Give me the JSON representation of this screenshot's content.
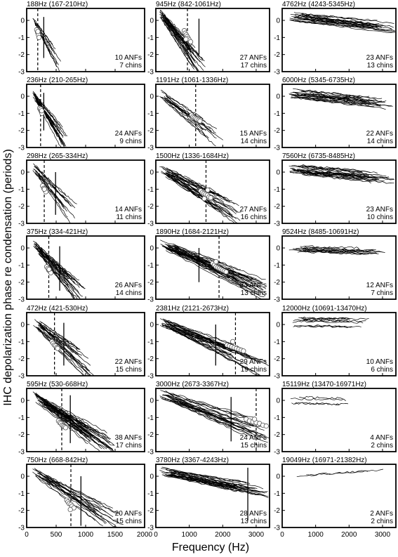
{
  "figure": {
    "ylabel": "IHC depolarization phase re condensation (periods)",
    "xlabel": "Frequency (Hz)"
  },
  "chart_data": {
    "type": "line",
    "xlabel": "Frequency (Hz)",
    "ylabel": "IHC depolarization phase re condensation (periods)",
    "columns": [
      {
        "xlim": [
          0,
          2000
        ],
        "xticks": [
          0,
          500,
          1000,
          1500,
          2000
        ]
      },
      {
        "xlim": [
          0,
          3400
        ],
        "xticks": [
          0,
          1000,
          2000,
          3000
        ]
      },
      {
        "xlim": [
          0,
          3400
        ],
        "xticks": [
          0,
          1000,
          2000,
          3000
        ]
      }
    ],
    "ylim": [
      -3,
      0.7
    ],
    "yticks": [
      0,
      -1,
      -2,
      -3
    ],
    "panels": [
      {
        "col": 0,
        "row": 0,
        "title": "188Hz (167-210Hz)",
        "anfs": "10 ANFs",
        "chins": "7 chins",
        "cf": 188,
        "dashed": 188,
        "solid": 290,
        "solid_range": [
          -2.2,
          0.2
        ],
        "fiber_count": 10,
        "x_range": [
          100,
          600
        ],
        "phase": [
          0.25,
          -2.6
        ],
        "circles": [
          [
            170,
            -0.55
          ],
          [
            185,
            -0.7
          ],
          [
            200,
            -0.85
          ],
          [
            210,
            -1.0
          ],
          [
            190,
            -0.65
          ]
        ]
      },
      {
        "col": 0,
        "row": 1,
        "title": "236Hz (210-265Hz)",
        "anfs": "24 ANFs",
        "chins": "9 chins",
        "cf": 236,
        "dashed": 236,
        "solid": 290,
        "solid_range": [
          -2.0,
          0.2
        ],
        "fiber_count": 24,
        "x_range": [
          100,
          700
        ],
        "phase": [
          0.2,
          -2.9
        ],
        "circles": [
          [
            220,
            -0.7
          ],
          [
            235,
            -0.8
          ],
          [
            250,
            -0.9
          ],
          [
            260,
            -1.0
          ],
          [
            240,
            -0.75
          ],
          [
            255,
            -0.85
          ]
        ]
      },
      {
        "col": 0,
        "row": 2,
        "title": "298Hz (265-334Hz)",
        "anfs": "14 ANFs",
        "chins": "11 chins",
        "cf": 298,
        "dashed": 298,
        "solid": 490,
        "solid_range": [
          -2.5,
          0.0
        ],
        "fiber_count": 14,
        "x_range": [
          100,
          900
        ],
        "phase": [
          0.3,
          -3.0
        ],
        "circles": [
          [
            270,
            -0.8
          ],
          [
            290,
            -0.95
          ],
          [
            310,
            -1.05
          ],
          [
            325,
            -1.15
          ],
          [
            300,
            -1.0
          ]
        ]
      },
      {
        "col": 0,
        "row": 3,
        "title": "375Hz (334-421Hz)",
        "anfs": "26 ANFs",
        "chins": "14 chins",
        "cf": 375,
        "dashed": 375,
        "solid": 560,
        "solid_range": [
          -2.5,
          0.1
        ],
        "fiber_count": 26,
        "x_range": [
          100,
          1000
        ],
        "phase": [
          0.3,
          -3.0
        ],
        "circles": [
          [
            340,
            -1.1
          ],
          [
            360,
            -1.2
          ],
          [
            375,
            -1.3
          ],
          [
            390,
            -1.35
          ],
          [
            410,
            -1.45
          ],
          [
            380,
            -1.25
          ]
        ]
      },
      {
        "col": 0,
        "row": 4,
        "title": "472Hz (421-530Hz)",
        "anfs": "22 ANFs",
        "chins": "15 chins",
        "cf": 472,
        "dashed": 472,
        "solid": 630,
        "solid_range": [
          -2.4,
          0.1
        ],
        "fiber_count": 22,
        "x_range": [
          100,
          1200
        ],
        "phase": [
          0.25,
          -3.0
        ],
        "circles": [
          [
            430,
            -1.0
          ],
          [
            450,
            -1.1
          ],
          [
            470,
            -1.2
          ],
          [
            490,
            -1.25
          ],
          [
            510,
            -1.35
          ],
          [
            525,
            -1.4
          ]
        ]
      },
      {
        "col": 0,
        "row": 5,
        "title": "595Hz (530-668Hz)",
        "anfs": "38 ANFs",
        "chins": "17 chins",
        "cf": 595,
        "dashed": 595,
        "solid": 740,
        "solid_range": [
          -2.5,
          0.3
        ],
        "fiber_count": 38,
        "x_range": [
          100,
          1500
        ],
        "phase": [
          0.3,
          -3.0
        ],
        "circles": [
          [
            540,
            -1.2
          ],
          [
            560,
            -1.3
          ],
          [
            580,
            -1.35
          ],
          [
            600,
            -1.45
          ],
          [
            620,
            -1.5
          ],
          [
            640,
            -1.55
          ],
          [
            660,
            -1.6
          ]
        ]
      },
      {
        "col": 0,
        "row": 6,
        "title": "750Hz (668-842Hz)",
        "anfs": "20 ANFs",
        "chins": "15 chins",
        "cf": 750,
        "dashed": 750,
        "solid": 920,
        "solid_range": [
          -2.9,
          0.0
        ],
        "fiber_count": 20,
        "x_range": [
          100,
          1700
        ],
        "phase": [
          0.3,
          -3.0
        ],
        "circles": [
          [
            680,
            -1.4
          ],
          [
            700,
            -1.5
          ],
          [
            720,
            -1.6
          ],
          [
            750,
            -1.65
          ],
          [
            770,
            -1.75
          ],
          [
            800,
            -1.85
          ],
          [
            740,
            -1.95
          ]
        ]
      },
      {
        "col": 1,
        "row": 0,
        "title": "945Hz (842-1061Hz)",
        "anfs": "27 ANFs",
        "chins": "17 chins",
        "cf": 945,
        "dashed": 945,
        "solid": 1290,
        "solid_range": [
          -2.0,
          0.1
        ],
        "fiber_count": 27,
        "x_range": [
          100,
          1500
        ],
        "phase": [
          0.5,
          -3.0
        ],
        "circles": [
          [
            850,
            -0.6
          ],
          [
            880,
            -0.75
          ],
          [
            910,
            -0.85
          ],
          [
            940,
            -0.95
          ],
          [
            970,
            -1.05
          ],
          [
            1000,
            -1.15
          ],
          [
            1040,
            -1.25
          ],
          [
            900,
            -1.1
          ]
        ]
      },
      {
        "col": 1,
        "row": 1,
        "title": "1191Hz (1061-1336Hz)",
        "anfs": "15 ANFs",
        "chins": "14 chins",
        "cf": 1191,
        "dashed": 1191,
        "solid": null,
        "fiber_count": 15,
        "x_range": [
          100,
          2100
        ],
        "phase": [
          0.2,
          -2.6
        ],
        "circles": [
          [
            1070,
            -1.1
          ],
          [
            1110,
            -1.2
          ],
          [
            1150,
            -1.25
          ],
          [
            1190,
            -1.3
          ],
          [
            1230,
            -1.35
          ],
          [
            1280,
            -1.4
          ],
          [
            1320,
            -1.45
          ]
        ]
      },
      {
        "col": 1,
        "row": 2,
        "title": "1500Hz (1336-1684Hz)",
        "anfs": "27 ANFs",
        "chins": "16 chins",
        "cf": 1500,
        "dashed": 1500,
        "solid": null,
        "fiber_count": 27,
        "x_range": [
          100,
          2600
        ],
        "phase": [
          0.25,
          -2.6
        ],
        "circles": [
          [
            1340,
            -1.1
          ],
          [
            1390,
            -1.2
          ],
          [
            1440,
            -1.25
          ],
          [
            1490,
            -1.3
          ],
          [
            1540,
            -1.35
          ],
          [
            1590,
            -1.45
          ],
          [
            1640,
            -1.5
          ],
          [
            1450,
            -1.55
          ],
          [
            1550,
            -1.05
          ]
        ]
      },
      {
        "col": 1,
        "row": 3,
        "title": "1890Hz (1684-2121Hz)",
        "anfs": "34 ANFs",
        "chins": "13 chins",
        "cf": 1890,
        "dashed": 1890,
        "solid": 1290,
        "solid_range": [
          -2.0,
          0.0
        ],
        "fiber_count": 34,
        "x_range": [
          100,
          3300
        ],
        "phase": [
          0.3,
          -2.5
        ],
        "circles": [
          [
            1700,
            -0.9
          ],
          [
            1750,
            -1.0
          ],
          [
            1800,
            -1.1
          ],
          [
            1850,
            -1.15
          ],
          [
            1900,
            -1.2
          ],
          [
            1950,
            -1.25
          ],
          [
            2000,
            -1.3
          ],
          [
            2050,
            -1.35
          ],
          [
            2100,
            -1.4
          ],
          [
            1800,
            -0.8
          ]
        ]
      },
      {
        "col": 1,
        "row": 4,
        "title": "2381Hz (2121-2673Hz)",
        "anfs": "29 ANFs",
        "chins": "19 chins",
        "cf": 2381,
        "dashed": 2381,
        "solid": 1790,
        "solid_range": [
          -2.4,
          0.0
        ],
        "fiber_count": 29,
        "x_range": [
          100,
          3400
        ],
        "phase": [
          0.2,
          -2.6
        ],
        "circles": [
          [
            2130,
            -1.2
          ],
          [
            2200,
            -1.25
          ],
          [
            2270,
            -1.3
          ],
          [
            2340,
            -1.35
          ],
          [
            2410,
            -1.4
          ],
          [
            2480,
            -1.45
          ],
          [
            2550,
            -1.5
          ],
          [
            2620,
            -1.55
          ],
          [
            2300,
            -1.0
          ]
        ]
      },
      {
        "col": 1,
        "row": 5,
        "title": "3000Hz (2673-3367Hz)",
        "anfs": "24 ANFs",
        "chins": "15 chins",
        "cf": 3000,
        "dashed": 3000,
        "solid": 2250,
        "solid_range": [
          -2.4,
          0.2
        ],
        "fiber_count": 24,
        "x_range": [
          100,
          3400
        ],
        "phase": [
          0.4,
          -2.0
        ],
        "circles": [
          [
            2700,
            -1.1
          ],
          [
            2800,
            -1.2
          ],
          [
            2900,
            -1.25
          ],
          [
            3000,
            -1.3
          ],
          [
            3100,
            -1.35
          ],
          [
            3200,
            -1.45
          ],
          [
            3300,
            -1.5
          ],
          [
            2950,
            -1.1
          ]
        ]
      },
      {
        "col": 1,
        "row": 6,
        "title": "3780Hz (3367-4243Hz)",
        "anfs": "28 ANFs",
        "chins": "13 chins",
        "cf": 3780,
        "dashed": null,
        "solid": 2750,
        "solid_range": [
          -2.6,
          0.5
        ],
        "fiber_count": 28,
        "x_range": [
          100,
          3400
        ],
        "phase": [
          0.3,
          -1.0
        ],
        "circles": []
      },
      {
        "col": 2,
        "row": 0,
        "title": "4762Hz (4243-5345Hz)",
        "anfs": "23 ANFs",
        "chins": "13 chins",
        "cf": 4762,
        "dashed": null,
        "solid": null,
        "fiber_count": 23,
        "x_range": [
          200,
          3400
        ],
        "phase": [
          0.2,
          -0.5
        ],
        "circles": []
      },
      {
        "col": 2,
        "row": 1,
        "title": "6000Hz (5345-6735Hz)",
        "anfs": "22 ANFs",
        "chins": "14 chins",
        "cf": 6000,
        "dashed": null,
        "solid": null,
        "fiber_count": 22,
        "x_range": [
          200,
          3400
        ],
        "phase": [
          0.2,
          -0.4
        ],
        "circles": []
      },
      {
        "col": 2,
        "row": 2,
        "title": "7560Hz (6735-8485Hz)",
        "anfs": "23 ANFs",
        "chins": "10 chins",
        "cf": 7560,
        "dashed": null,
        "solid": null,
        "fiber_count": 23,
        "x_range": [
          200,
          3400
        ],
        "phase": [
          0.2,
          -0.4
        ],
        "circles": []
      },
      {
        "col": 2,
        "row": 3,
        "title": "9524Hz (8485-10691Hz)",
        "anfs": "12 ANFs",
        "chins": "7 chins",
        "cf": 9524,
        "dashed": null,
        "solid": null,
        "fiber_count": 12,
        "x_range": [
          200,
          3200
        ],
        "phase": [
          0.0,
          -0.2
        ],
        "circles": []
      },
      {
        "col": 2,
        "row": 4,
        "title": "12000Hz (10691-13470Hz)",
        "anfs": "10 ANFs",
        "chins": "6 chins",
        "cf": 12000,
        "dashed": null,
        "solid": null,
        "fiber_count": 10,
        "x_range": [
          300,
          2700
        ],
        "phase": [
          0.15,
          0.1
        ],
        "circles": []
      },
      {
        "col": 2,
        "row": 5,
        "title": "15119Hz (13470-16971Hz)",
        "anfs": "4 ANFs",
        "chins": "2 chins",
        "cf": 15119,
        "dashed": null,
        "solid": null,
        "fiber_count": 4,
        "x_range": [
          200,
          2300
        ],
        "phase": [
          0.05,
          -0.05
        ],
        "circles": []
      },
      {
        "col": 2,
        "row": 6,
        "title": "19049Hz (16971-21382Hz)",
        "anfs": "2 ANFs",
        "chins": "2 chins",
        "cf": 19049,
        "dashed": null,
        "solid": null,
        "fiber_count": 2,
        "x_range": [
          300,
          3200
        ],
        "phase": [
          0.0,
          0.35
        ],
        "circles": []
      }
    ]
  }
}
